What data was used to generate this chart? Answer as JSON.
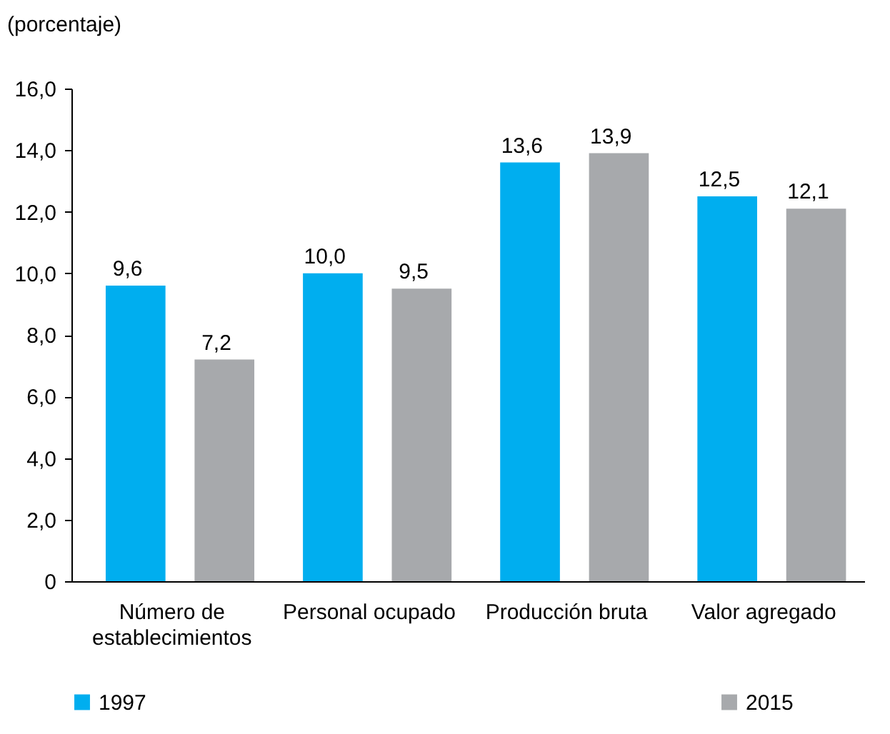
{
  "chart_data": {
    "type": "bar",
    "ylabel": "(porcentaje)",
    "categories": [
      "Número de establecimientos",
      "Personal ocupado",
      "Producción bruta",
      "Valor agregado"
    ],
    "series": [
      {
        "name": "1997",
        "color": "#00aeef",
        "values": [
          9.6,
          10.0,
          13.6,
          12.5
        ],
        "value_labels": [
          "9,6",
          "10,0",
          "13,6",
          "12,5"
        ]
      },
      {
        "name": "2015",
        "color": "#a7a9ac",
        "values": [
          7.2,
          9.5,
          13.9,
          12.1
        ],
        "value_labels": [
          "7,2",
          "9,5",
          "13,9",
          "12,1"
        ]
      }
    ],
    "ylim": [
      0,
      16
    ],
    "yticks": [
      0,
      {
        "value": 2,
        "label": "2,0"
      },
      {
        "value": 4,
        "label": "4,0"
      },
      {
        "value": 6,
        "label": "6,0"
      },
      {
        "value": 8,
        "label": "8,0"
      },
      {
        "value": 10,
        "label": "10,0"
      },
      {
        "value": 12,
        "label": "12,0"
      },
      {
        "value": 14,
        "label": "14,0"
      },
      {
        "value": 16,
        "label": "16,0"
      }
    ],
    "legend": "bottom",
    "grid": false
  }
}
